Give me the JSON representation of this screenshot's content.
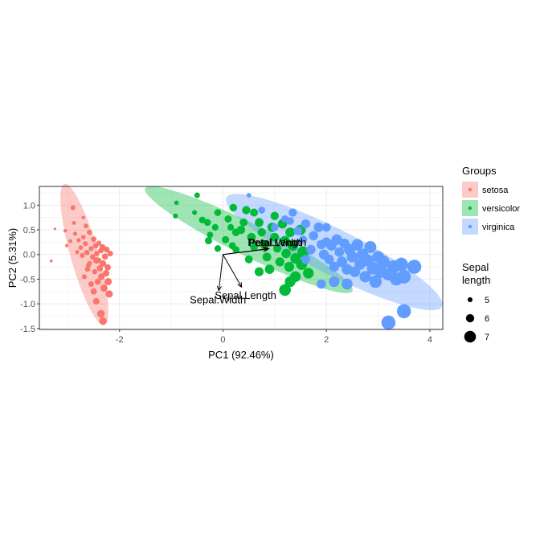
{
  "chart_data": {
    "type": "scatter",
    "xlabel": "PC1 (92.46%)",
    "ylabel": "PC2 (5.31%)",
    "xlim": [
      -3.55,
      4.25
    ],
    "ylim": [
      -1.52,
      1.38
    ],
    "x_ticks": [
      -2,
      0,
      2,
      4
    ],
    "y_ticks": [
      -1.5,
      -1.0,
      -0.5,
      0.0,
      0.5,
      1.0
    ],
    "x_tick_labels": [
      "-2",
      "0",
      "2",
      "4"
    ],
    "y_tick_labels": [
      "-1.5",
      "-1.0",
      "-0.5",
      "0.0",
      "0.5",
      "1.0"
    ],
    "grid": true,
    "legend_position": "right",
    "legend_groups": {
      "title": "Groups",
      "entries": [
        {
          "label": "setosa",
          "color": "#F8766D"
        },
        {
          "label": "versicolor",
          "color": "#00BA38"
        },
        {
          "label": "virginica",
          "color": "#619CFF"
        }
      ]
    },
    "legend_size": {
      "title_lines": [
        "Sepal",
        "length"
      ],
      "entries": [
        {
          "label": "5",
          "value": 5
        },
        {
          "label": "6",
          "value": 6
        },
        {
          "label": "7",
          "value": 7
        }
      ]
    },
    "ellipses": [
      {
        "group": "setosa",
        "cx": -2.68,
        "cy": 0.0,
        "a": 1.48,
        "b": 0.27,
        "angle_deg": -75,
        "color": "#F8766D"
      },
      {
        "group": "versicolor",
        "cx": 0.5,
        "cy": 0.3,
        "a": 2.26,
        "b": 0.33,
        "angle_deg": -27.5,
        "color": "#00BA38"
      },
      {
        "group": "virginica",
        "cx": 2.15,
        "cy": 0.05,
        "a": 2.36,
        "b": 0.46,
        "angle_deg": -28,
        "color": "#619CFF"
      }
    ],
    "loadings": [
      {
        "label": "Petal.Length",
        "x": 0.89,
        "y": 0.12
      },
      {
        "label": "Petal.Width",
        "x": 0.86,
        "y": 0.11
      },
      {
        "label": "Sepal.Length",
        "x": 0.36,
        "y": -0.66
      },
      {
        "label": "Sepal.Width",
        "x": -0.08,
        "y": -0.73
      }
    ],
    "series": [
      {
        "name": "setosa",
        "color": "#F8766D",
        "points": [
          [
            -3.25,
            0.52,
            4.3
          ],
          [
            -3.32,
            -0.13,
            4.4
          ],
          [
            -3.05,
            0.48,
            4.6
          ],
          [
            -3.02,
            0.18,
            4.5
          ],
          [
            -2.9,
            0.95,
            5.0
          ],
          [
            -2.88,
            0.64,
            4.7
          ],
          [
            -2.86,
            0.42,
            4.8
          ],
          [
            -2.79,
            0.29,
            4.8
          ],
          [
            -2.75,
            0.14,
            4.9
          ],
          [
            -2.72,
            -0.02,
            5.0
          ],
          [
            -2.7,
            0.35,
            4.9
          ],
          [
            -2.66,
            0.22,
            5.0
          ],
          [
            -2.63,
            0.04,
            5.1
          ],
          [
            -2.6,
            -0.22,
            5.0
          ],
          [
            -2.58,
            0.45,
            5.1
          ],
          [
            -2.55,
            0.12,
            5.0
          ],
          [
            -2.52,
            -0.05,
            5.1
          ],
          [
            -2.5,
            0.31,
            5.2
          ],
          [
            -2.48,
            -0.35,
            5.1
          ],
          [
            -2.46,
            0.18,
            5.2
          ],
          [
            -2.45,
            -0.12,
            5.4
          ],
          [
            -2.44,
            0.02,
            5.1
          ],
          [
            -2.42,
            -0.55,
            5.4
          ],
          [
            -2.4,
            0.23,
            5.0
          ],
          [
            -2.38,
            -0.28,
            5.4
          ],
          [
            -2.36,
            0.08,
            5.2
          ],
          [
            -2.35,
            -0.45,
            5.5
          ],
          [
            -2.33,
            0.15,
            5.3
          ],
          [
            -2.32,
            -0.18,
            5.4
          ],
          [
            -2.3,
            -0.68,
            5.7
          ],
          [
            -2.28,
            -0.04,
            5.4
          ],
          [
            -2.26,
            -0.38,
            5.5
          ],
          [
            -2.25,
            0.1,
            5.3
          ],
          [
            -2.23,
            -0.26,
            5.4
          ],
          [
            -2.22,
            -0.55,
            5.7
          ],
          [
            -2.2,
            -0.8,
            5.7
          ],
          [
            -2.18,
            0.02,
            5.2
          ],
          [
            -2.5,
            -0.75,
            5.4
          ],
          [
            -2.45,
            -0.95,
            5.5
          ],
          [
            -2.36,
            -1.2,
            5.8
          ],
          [
            -2.32,
            -1.35,
            5.8
          ],
          [
            -2.55,
            -0.6,
            5.2
          ],
          [
            -2.68,
            -0.45,
            5.0
          ],
          [
            -2.62,
            -0.3,
            5.1
          ],
          [
            -2.82,
            0.05,
            4.8
          ],
          [
            -2.95,
            0.27,
            4.7
          ],
          [
            -2.65,
            0.58,
            4.9
          ],
          [
            -2.7,
            0.75,
            4.6
          ],
          [
            -2.4,
            -0.12,
            5.1
          ],
          [
            -2.58,
            -0.18,
            5.0
          ]
        ]
      },
      {
        "name": "versicolor",
        "color": "#00BA38",
        "points": [
          [
            -0.9,
            1.05,
            4.9
          ],
          [
            -0.92,
            0.78,
            5.0
          ],
          [
            -0.5,
            1.2,
            5.2
          ],
          [
            -0.55,
            0.85,
            5.0
          ],
          [
            -0.4,
            0.7,
            5.5
          ],
          [
            -0.3,
            0.65,
            5.6
          ],
          [
            -0.15,
            0.55,
            5.5
          ],
          [
            -0.25,
            0.4,
            5.4
          ],
          [
            -0.28,
            0.28,
            5.7
          ],
          [
            -0.1,
            0.85,
            5.6
          ],
          [
            0.1,
            0.72,
            5.7
          ],
          [
            0.2,
            0.95,
            5.8
          ],
          [
            0.15,
            0.55,
            5.5
          ],
          [
            0.25,
            0.45,
            5.8
          ],
          [
            0.05,
            0.3,
            5.7
          ],
          [
            0.18,
            0.18,
            5.6
          ],
          [
            0.4,
            0.65,
            5.9
          ],
          [
            0.35,
            0.5,
            6.0
          ],
          [
            0.45,
            0.9,
            6.0
          ],
          [
            0.55,
            0.35,
            6.1
          ],
          [
            0.6,
            0.15,
            5.8
          ],
          [
            0.7,
            0.65,
            6.1
          ],
          [
            0.75,
            0.45,
            6.0
          ],
          [
            0.8,
            0.2,
            6.2
          ],
          [
            0.85,
            -0.05,
            6.1
          ],
          [
            0.95,
            0.55,
            6.3
          ],
          [
            1.0,
            0.35,
            6.1
          ],
          [
            1.05,
            0.12,
            6.0
          ],
          [
            1.1,
            -0.15,
            6.2
          ],
          [
            1.15,
            0.62,
            6.3
          ],
          [
            1.2,
            0.28,
            6.4
          ],
          [
            1.22,
            0.02,
            6.3
          ],
          [
            1.28,
            -0.25,
            6.5
          ],
          [
            1.3,
            0.45,
            6.4
          ],
          [
            1.35,
            0.18,
            6.6
          ],
          [
            1.4,
            -0.08,
            6.6
          ],
          [
            1.4,
            -0.45,
            6.7
          ],
          [
            0.7,
            -0.35,
            6.2
          ],
          [
            0.5,
            -0.1,
            5.9
          ],
          [
            0.9,
            -0.3,
            6.3
          ],
          [
            1.3,
            -0.55,
            6.7
          ],
          [
            1.52,
            -0.2,
            6.8
          ],
          [
            1.55,
            0.05,
            6.9
          ],
          [
            1.65,
            -0.38,
            6.7
          ],
          [
            0.25,
            0.1,
            5.6
          ],
          [
            0.6,
            0.85,
            5.9
          ],
          [
            -0.1,
            0.12,
            5.5
          ],
          [
            1.0,
            0.78,
            6.0
          ],
          [
            1.2,
            -0.72,
            7.0
          ],
          [
            1.5,
            0.5,
            6.6
          ]
        ]
      },
      {
        "name": "virginica",
        "color": "#619CFF",
        "points": [
          [
            0.5,
            1.2,
            4.9
          ],
          [
            0.75,
            0.9,
            5.6
          ],
          [
            1.0,
            0.55,
            5.8
          ],
          [
            1.2,
            0.72,
            5.7
          ],
          [
            1.3,
            0.68,
            5.8
          ],
          [
            1.35,
            0.85,
            6.0
          ],
          [
            1.45,
            0.48,
            6.1
          ],
          [
            1.55,
            0.3,
            6.0
          ],
          [
            1.6,
            0.62,
            6.2
          ],
          [
            1.7,
            0.1,
            6.3
          ],
          [
            1.75,
            0.38,
            6.3
          ],
          [
            1.85,
            0.55,
            6.4
          ],
          [
            1.9,
            0.2,
            6.3
          ],
          [
            1.95,
            0.0,
            6.5
          ],
          [
            2.0,
            0.25,
            6.4
          ],
          [
            2.05,
            -0.1,
            6.4
          ],
          [
            2.1,
            0.18,
            6.5
          ],
          [
            2.15,
            -0.25,
            6.5
          ],
          [
            2.2,
            0.3,
            6.7
          ],
          [
            2.25,
            0.05,
            6.4
          ],
          [
            2.3,
            -0.15,
            6.7
          ],
          [
            2.35,
            0.22,
            6.5
          ],
          [
            2.4,
            -0.3,
            6.7
          ],
          [
            2.45,
            0.1,
            6.9
          ],
          [
            2.5,
            -0.05,
            6.8
          ],
          [
            2.55,
            -0.35,
            6.7
          ],
          [
            2.6,
            0.2,
            6.9
          ],
          [
            2.65,
            -0.2,
            6.8
          ],
          [
            2.7,
            0.0,
            7.0
          ],
          [
            2.75,
            -0.45,
            6.9
          ],
          [
            2.8,
            -0.12,
            7.0
          ],
          [
            2.85,
            0.15,
            7.1
          ],
          [
            2.9,
            -0.28,
            7.2
          ],
          [
            2.95,
            -0.55,
            7.2
          ],
          [
            3.0,
            -0.05,
            7.1
          ],
          [
            3.05,
            -0.35,
            7.2
          ],
          [
            3.1,
            -0.15,
            7.3
          ],
          [
            3.2,
            -0.4,
            7.2
          ],
          [
            3.3,
            -0.25,
            7.4
          ],
          [
            3.35,
            -0.5,
            7.3
          ],
          [
            3.45,
            -0.2,
            7.5
          ],
          [
            3.5,
            -0.45,
            7.6
          ],
          [
            3.7,
            -0.25,
            7.7
          ],
          [
            3.5,
            -1.15,
            7.7
          ],
          [
            3.2,
            -1.38,
            7.7
          ],
          [
            2.15,
            -0.55,
            6.7
          ],
          [
            1.9,
            -0.6,
            6.3
          ],
          [
            2.4,
            -0.6,
            6.8
          ],
          [
            1.6,
            -0.1,
            6.2
          ],
          [
            2.0,
            0.55,
            6.1
          ]
        ]
      }
    ]
  }
}
